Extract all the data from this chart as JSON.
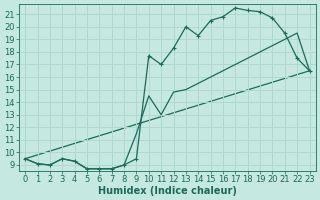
{
  "xlabel": "Humidex (Indice chaleur)",
  "bg_color": "#c5e8e0",
  "grid_color": "#b0d8d0",
  "line_color": "#1a6b5a",
  "xlim_min": -0.5,
  "xlim_max": 23.5,
  "ylim_min": 8.5,
  "ylim_max": 21.8,
  "yticks": [
    9,
    10,
    11,
    12,
    13,
    14,
    15,
    16,
    17,
    18,
    19,
    20,
    21
  ],
  "xticks": [
    0,
    1,
    2,
    3,
    4,
    5,
    6,
    7,
    8,
    9,
    10,
    11,
    12,
    13,
    14,
    15,
    16,
    17,
    18,
    19,
    20,
    21,
    22,
    23
  ],
  "curve1_x": [
    0,
    1,
    2,
    3,
    4,
    5,
    6,
    7,
    8,
    9,
    10,
    11,
    12,
    13,
    14,
    15,
    16,
    17,
    18,
    19,
    20,
    21,
    22,
    23
  ],
  "curve1_y": [
    9.5,
    9.1,
    9.0,
    9.5,
    9.3,
    8.7,
    8.7,
    8.7,
    9.0,
    9.5,
    17.7,
    17.0,
    18.3,
    20.0,
    19.3,
    20.5,
    20.8,
    21.5,
    21.3,
    21.2,
    20.7,
    19.5,
    17.5,
    16.5
  ],
  "curve2_x": [
    0,
    1,
    2,
    3,
    4,
    5,
    6,
    7,
    8,
    9,
    10,
    11,
    12,
    13,
    14,
    15,
    16,
    17,
    18,
    19,
    20,
    21,
    22,
    23
  ],
  "curve2_y": [
    9.5,
    9.1,
    9.0,
    9.5,
    9.3,
    8.7,
    8.7,
    8.7,
    9.0,
    11.5,
    14.5,
    13.0,
    14.8,
    15.0,
    15.5,
    16.0,
    16.5,
    17.0,
    17.5,
    18.0,
    18.5,
    19.0,
    19.5,
    16.5
  ],
  "line3_x": [
    0,
    23
  ],
  "line3_y": [
    9.5,
    16.5
  ],
  "font_size_tick": 6,
  "font_size_label": 7
}
